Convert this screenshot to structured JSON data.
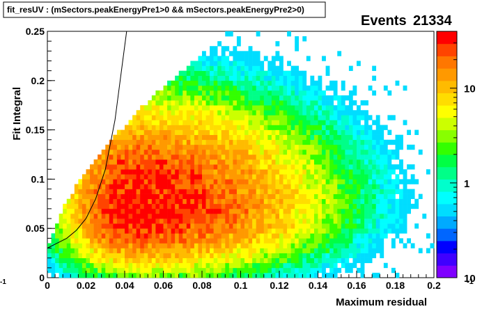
{
  "title": "fit_resUV : (mSectors.peakEnergyPre1>0 && mSectors.peakEnergyPre2>0)",
  "stats": {
    "label": "Events",
    "value": "21334"
  },
  "chart_data": {
    "type": "heatmap",
    "xlabel": "Maximum residual",
    "ylabel": "Fit Integral",
    "xlim": [
      0,
      0.2
    ],
    "ylim": [
      0,
      0.25
    ],
    "x_ticks": [
      "0",
      "0.02",
      "0.04",
      "0.06",
      "0.08",
      "0.1",
      "0.12",
      "0.14",
      "0.16",
      "0.18",
      "0.2"
    ],
    "y_ticks": [
      "0",
      "0.05",
      "0.1",
      "0.15",
      "0.2",
      "0.25"
    ],
    "z_scale": "log",
    "z_ticks": [
      "10",
      "1",
      "10"
    ],
    "z_edge_label": "-1",
    "peak": {
      "x": 0.045,
      "y": 0.07
    },
    "overlay_curve": {
      "x": [
        0,
        0.005,
        0.01,
        0.015,
        0.02,
        0.025,
        0.03,
        0.035,
        0.039,
        0.041
      ],
      "y": [
        0.03,
        0.035,
        0.04,
        0.048,
        0.06,
        0.08,
        0.11,
        0.16,
        0.22,
        0.25
      ]
    }
  }
}
